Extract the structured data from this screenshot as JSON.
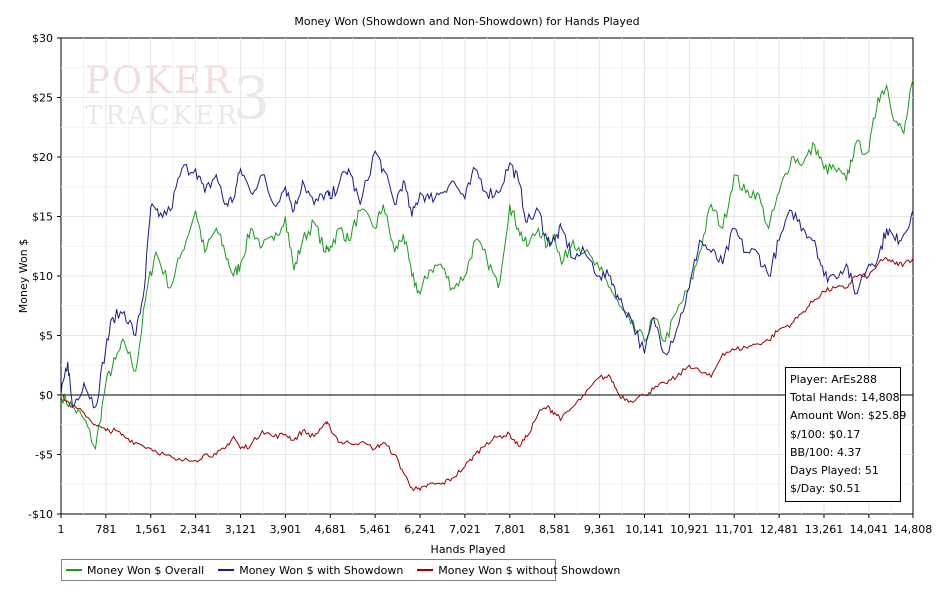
{
  "watermark": {
    "line1": "POKER",
    "line2": "TRACKER",
    "mark": "3"
  },
  "stats": {
    "player": "Player: ArEs288",
    "total_hands": "Total Hands: 14,808",
    "amount_won": "Amount Won: $25.89",
    "per100": "$/100: $0.17",
    "bb100": "BB/100: 4.37",
    "days_played": "Days Played: 51",
    "per_day": "$/Day: $0.51"
  },
  "chart_data": {
    "type": "line",
    "title": "Money Won (Showdown and Non-Showdown) for Hands Played",
    "xlabel": "Hands Played",
    "ylabel": "Money Won $",
    "xlim": [
      1,
      14808
    ],
    "ylim": [
      -10,
      30
    ],
    "x_ticks": [
      1,
      781,
      1561,
      2341,
      3121,
      3901,
      4681,
      5461,
      6241,
      7021,
      7801,
      8581,
      9361,
      10141,
      10921,
      11701,
      12481,
      13261,
      14041,
      14808
    ],
    "x_tick_labels": [
      "1",
      "781",
      "1,561",
      "2,341",
      "3,121",
      "3,901",
      "4,681",
      "5,461",
      "6,241",
      "7,021",
      "7,801",
      "8,581",
      "9,361",
      "10,141",
      "10,921",
      "11,701",
      "12,481",
      "13,261",
      "14,041",
      "14,808"
    ],
    "y_ticks": [
      -10,
      -5,
      0,
      5,
      10,
      15,
      20,
      25,
      30
    ],
    "y_tick_labels": [
      "-$10",
      "-$5",
      "$0",
      "$5",
      "$10",
      "$15",
      "$20",
      "$25",
      "$30"
    ],
    "grid": true,
    "legend_position": "bottom-left",
    "series": [
      {
        "name": "Money Won $ Overall",
        "color": "#1a9a1a",
        "points": [
          [
            1,
            0
          ],
          [
            200,
            -1
          ],
          [
            400,
            -2
          ],
          [
            600,
            -4.5
          ],
          [
            781,
            1
          ],
          [
            950,
            3
          ],
          [
            1100,
            4.5
          ],
          [
            1300,
            2
          ],
          [
            1500,
            9
          ],
          [
            1650,
            12
          ],
          [
            1900,
            9
          ],
          [
            2100,
            12
          ],
          [
            2341,
            15.5
          ],
          [
            2500,
            12
          ],
          [
            2700,
            14
          ],
          [
            2850,
            12
          ],
          [
            3000,
            10
          ],
          [
            3121,
            11
          ],
          [
            3300,
            14
          ],
          [
            3500,
            12.5
          ],
          [
            3700,
            13
          ],
          [
            3901,
            15
          ],
          [
            4050,
            10.5
          ],
          [
            4200,
            13
          ],
          [
            4400,
            14.5
          ],
          [
            4600,
            12
          ],
          [
            4681,
            12.5
          ],
          [
            4850,
            14
          ],
          [
            5000,
            13
          ],
          [
            5200,
            15.5
          ],
          [
            5461,
            14
          ],
          [
            5600,
            16
          ],
          [
            5800,
            12
          ],
          [
            5950,
            13.5
          ],
          [
            6100,
            10
          ],
          [
            6241,
            8.5
          ],
          [
            6400,
            10.5
          ],
          [
            6600,
            11
          ],
          [
            6800,
            9
          ],
          [
            7021,
            10
          ],
          [
            7200,
            13
          ],
          [
            7400,
            11.5
          ],
          [
            7600,
            9
          ],
          [
            7801,
            16
          ],
          [
            7950,
            14
          ],
          [
            8100,
            12.5
          ],
          [
            8300,
            14
          ],
          [
            8450,
            12.5
          ],
          [
            8581,
            13.5
          ],
          [
            8700,
            11
          ],
          [
            8900,
            13
          ],
          [
            9100,
            12
          ],
          [
            9361,
            10.5
          ],
          [
            9550,
            9
          ],
          [
            9700,
            7.5
          ],
          [
            9900,
            6
          ],
          [
            10141,
            4.5
          ],
          [
            10300,
            6.5
          ],
          [
            10500,
            4.5
          ],
          [
            10700,
            7
          ],
          [
            10921,
            9
          ],
          [
            11100,
            12
          ],
          [
            11300,
            16
          ],
          [
            11500,
            14
          ],
          [
            11701,
            18.5
          ],
          [
            11900,
            17
          ],
          [
            12100,
            17
          ],
          [
            12300,
            14
          ],
          [
            12481,
            17
          ],
          [
            12700,
            20
          ],
          [
            12900,
            19.5
          ],
          [
            13100,
            21
          ],
          [
            13261,
            19
          ],
          [
            13450,
            19
          ],
          [
            13650,
            18
          ],
          [
            13800,
            21
          ],
          [
            14041,
            20.5
          ],
          [
            14200,
            25
          ],
          [
            14350,
            26
          ],
          [
            14500,
            23
          ],
          [
            14650,
            22
          ],
          [
            14808,
            26.5
          ]
        ]
      },
      {
        "name": "Money Won $ with Showdown",
        "color": "#1a1a90",
        "points": [
          [
            1,
            0
          ],
          [
            120,
            2.8
          ],
          [
            200,
            -1
          ],
          [
            400,
            1
          ],
          [
            600,
            -1
          ],
          [
            781,
            4
          ],
          [
            900,
            6.5
          ],
          [
            1100,
            7
          ],
          [
            1300,
            5
          ],
          [
            1450,
            9
          ],
          [
            1561,
            15.8
          ],
          [
            1700,
            15
          ],
          [
            1900,
            15.5
          ],
          [
            2100,
            19
          ],
          [
            2341,
            19
          ],
          [
            2500,
            17
          ],
          [
            2700,
            18.5
          ],
          [
            2850,
            16
          ],
          [
            3000,
            16.5
          ],
          [
            3121,
            19
          ],
          [
            3300,
            17
          ],
          [
            3500,
            18.5
          ],
          [
            3700,
            16
          ],
          [
            3901,
            17.5
          ],
          [
            4050,
            15.5
          ],
          [
            4200,
            18
          ],
          [
            4400,
            16
          ],
          [
            4600,
            17
          ],
          [
            4681,
            16.5
          ],
          [
            4850,
            18
          ],
          [
            5000,
            19
          ],
          [
            5200,
            16
          ],
          [
            5461,
            20.5
          ],
          [
            5600,
            19
          ],
          [
            5800,
            16
          ],
          [
            5950,
            18
          ],
          [
            6100,
            15
          ],
          [
            6241,
            17
          ],
          [
            6400,
            16.5
          ],
          [
            6600,
            17
          ],
          [
            6800,
            18
          ],
          [
            7021,
            16.5
          ],
          [
            7200,
            19
          ],
          [
            7400,
            17
          ],
          [
            7600,
            17
          ],
          [
            7801,
            19.5
          ],
          [
            7950,
            18
          ],
          [
            8100,
            14.5
          ],
          [
            8300,
            15.5
          ],
          [
            8450,
            13
          ],
          [
            8581,
            13
          ],
          [
            8700,
            14
          ],
          [
            8900,
            11.5
          ],
          [
            9100,
            12
          ],
          [
            9361,
            10
          ],
          [
            9550,
            10
          ],
          [
            9700,
            8
          ],
          [
            9900,
            6.5
          ],
          [
            10141,
            3.5
          ],
          [
            10300,
            6.5
          ],
          [
            10500,
            3.5
          ],
          [
            10700,
            5.5
          ],
          [
            10921,
            9
          ],
          [
            11100,
            13
          ],
          [
            11300,
            12
          ],
          [
            11500,
            11
          ],
          [
            11701,
            14
          ],
          [
            11900,
            12
          ],
          [
            12100,
            12
          ],
          [
            12300,
            10
          ],
          [
            12481,
            13
          ],
          [
            12700,
            15.5
          ],
          [
            12900,
            14
          ],
          [
            13100,
            13
          ],
          [
            13261,
            10
          ],
          [
            13450,
            10
          ],
          [
            13650,
            11
          ],
          [
            13800,
            8.5
          ],
          [
            14041,
            11
          ],
          [
            14200,
            11.5
          ],
          [
            14350,
            14
          ],
          [
            14500,
            13
          ],
          [
            14650,
            13.5
          ],
          [
            14808,
            15.5
          ]
        ]
      },
      {
        "name": "Money Won $ without Showdown",
        "color": "#990000",
        "points": [
          [
            1,
            0
          ],
          [
            200,
            -1
          ],
          [
            400,
            -1.5
          ],
          [
            600,
            -2.5
          ],
          [
            781,
            -3
          ],
          [
            950,
            -3
          ],
          [
            1100,
            -3.5
          ],
          [
            1300,
            -4
          ],
          [
            1561,
            -4.5
          ],
          [
            1800,
            -5
          ],
          [
            2000,
            -5.5
          ],
          [
            2341,
            -5.5
          ],
          [
            2500,
            -5
          ],
          [
            2700,
            -5
          ],
          [
            2850,
            -4.5
          ],
          [
            3000,
            -3.5
          ],
          [
            3121,
            -4.5
          ],
          [
            3300,
            -4.2
          ],
          [
            3500,
            -3
          ],
          [
            3700,
            -3.5
          ],
          [
            3901,
            -3.3
          ],
          [
            4050,
            -3.8
          ],
          [
            4200,
            -3
          ],
          [
            4400,
            -3.5
          ],
          [
            4600,
            -2.3
          ],
          [
            4681,
            -2.8
          ],
          [
            4850,
            -4
          ],
          [
            5000,
            -4
          ],
          [
            5200,
            -4
          ],
          [
            5461,
            -4.5
          ],
          [
            5600,
            -4
          ],
          [
            5800,
            -5
          ],
          [
            5950,
            -6.5
          ],
          [
            6100,
            -7.8
          ],
          [
            6241,
            -8
          ],
          [
            6400,
            -7.5
          ],
          [
            6600,
            -7.5
          ],
          [
            6800,
            -7
          ],
          [
            7021,
            -6
          ],
          [
            7200,
            -5
          ],
          [
            7400,
            -4
          ],
          [
            7600,
            -3.5
          ],
          [
            7801,
            -3.3
          ],
          [
            7950,
            -4.3
          ],
          [
            8100,
            -3.5
          ],
          [
            8300,
            -1.5
          ],
          [
            8450,
            -1
          ],
          [
            8581,
            -1.5
          ],
          [
            8700,
            -2
          ],
          [
            8900,
            -1
          ],
          [
            9100,
            0
          ],
          [
            9361,
            1.5
          ],
          [
            9550,
            1.5
          ],
          [
            9700,
            0
          ],
          [
            9900,
            -0.5
          ],
          [
            10141,
            0
          ],
          [
            10300,
            0.5
          ],
          [
            10500,
            1
          ],
          [
            10700,
            1.5
          ],
          [
            10921,
            2.5
          ],
          [
            11100,
            2
          ],
          [
            11300,
            1.5
          ],
          [
            11500,
            3.5
          ],
          [
            11701,
            3.8
          ],
          [
            11900,
            4
          ],
          [
            12100,
            4.3
          ],
          [
            12300,
            4.6
          ],
          [
            12481,
            5.5
          ],
          [
            12700,
            6
          ],
          [
            12900,
            7
          ],
          [
            13100,
            8
          ],
          [
            13261,
            8.7
          ],
          [
            13450,
            9
          ],
          [
            13650,
            9
          ],
          [
            13800,
            10
          ],
          [
            14041,
            10
          ],
          [
            14200,
            11
          ],
          [
            14350,
            11.5
          ],
          [
            14500,
            11
          ],
          [
            14650,
            11
          ],
          [
            14808,
            11.5
          ]
        ]
      }
    ]
  }
}
